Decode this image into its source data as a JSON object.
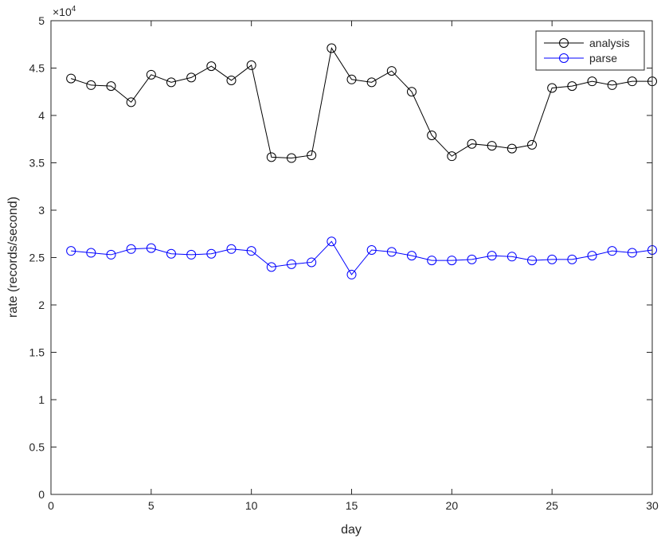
{
  "chart_data": {
    "type": "line",
    "xlabel": "day",
    "ylabel": "rate (records/second)",
    "exponent_label": "×10",
    "exponent_power": "4",
    "xlim": [
      0,
      30
    ],
    "ylim": [
      0,
      5
    ],
    "y_scale_factor": 10000,
    "xticks": [
      0,
      5,
      10,
      15,
      20,
      25,
      30
    ],
    "yticks": [
      0,
      0.5,
      1,
      1.5,
      2,
      2.5,
      3,
      3.5,
      4,
      4.5,
      5
    ],
    "xtick_labels": [
      "0",
      "5",
      "10",
      "15",
      "20",
      "25",
      "30"
    ],
    "ytick_labels": [
      "0",
      "0.5",
      "1",
      "1.5",
      "2",
      "2.5",
      "3",
      "3.5",
      "4",
      "4.5",
      "5"
    ],
    "grid": false,
    "legend_position": "top-right",
    "x": [
      1,
      2,
      3,
      4,
      5,
      6,
      7,
      8,
      9,
      10,
      11,
      12,
      13,
      14,
      15,
      16,
      17,
      18,
      19,
      20,
      21,
      22,
      23,
      24,
      25,
      26,
      27,
      28,
      29,
      30
    ],
    "series": [
      {
        "name": "analysis",
        "color": "#000000",
        "marker": "circle",
        "values": [
          4.39,
          4.32,
          4.31,
          4.14,
          4.43,
          4.35,
          4.4,
          4.52,
          4.37,
          4.53,
          3.56,
          3.55,
          3.58,
          4.71,
          4.38,
          4.35,
          4.47,
          4.25,
          3.79,
          3.57,
          3.7,
          3.68,
          3.65,
          3.69,
          4.29,
          4.31,
          4.36,
          4.32,
          4.36,
          4.36
        ]
      },
      {
        "name": "parse",
        "color": "#0000ff",
        "marker": "circle",
        "values": [
          2.57,
          2.55,
          2.53,
          2.59,
          2.6,
          2.54,
          2.53,
          2.54,
          2.59,
          2.57,
          2.4,
          2.43,
          2.45,
          2.67,
          2.32,
          2.58,
          2.56,
          2.52,
          2.47,
          2.47,
          2.48,
          2.52,
          2.51,
          2.47,
          2.48,
          2.48,
          2.52,
          2.57,
          2.55,
          2.58
        ]
      }
    ]
  }
}
